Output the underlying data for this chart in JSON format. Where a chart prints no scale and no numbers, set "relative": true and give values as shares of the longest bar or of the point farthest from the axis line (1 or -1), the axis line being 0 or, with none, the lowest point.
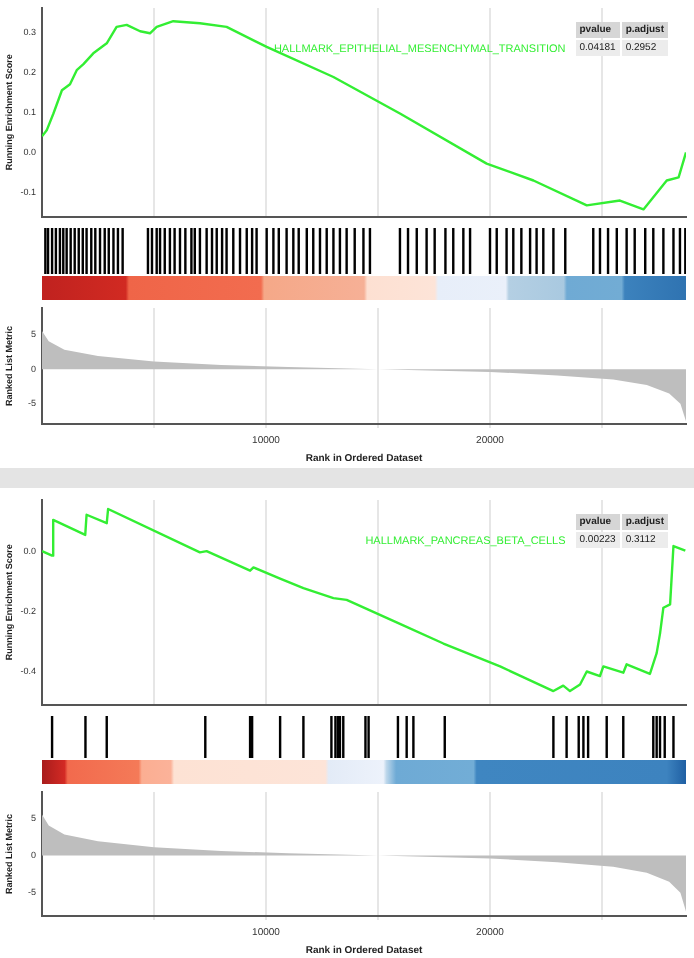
{
  "chart_data": [
    {
      "type": "line",
      "ylabel": "Running Enrichment Score",
      "xlim": [
        0,
        28750
      ],
      "xticks": [
        {
          "value": 5000,
          "label": null
        },
        {
          "value": 10000,
          "label": null
        },
        {
          "value": 15000,
          "label": null
        },
        {
          "value": 20000,
          "label": null
        },
        {
          "value": 25000,
          "label": null
        }
      ],
      "ylim": [
        -0.16,
        0.36
      ],
      "yticks": [
        -0.1,
        {
          "value": 0,
          "label": "0.0"
        },
        0.1,
        0.2,
        0.3
      ],
      "grid": "x",
      "tick_labels": "y",
      "series": [
        {
          "name": "HALLMARK_EPITHELIAL_MESENCHYMAL_TRANSITION",
          "color": "#33ee33",
          "x": [
            0,
            210,
            510,
            890,
            1250,
            1550,
            1850,
            2290,
            2890,
            3330,
            3780,
            4380,
            4820,
            5120,
            5860,
            7050,
            8240,
            10030,
            13010,
            15980,
            19850,
            21940,
            24320,
            25800,
            26850,
            27890,
            28420,
            28750
          ],
          "values": [
            0.04,
            0.055,
            0.097,
            0.155,
            0.17,
            0.205,
            0.22,
            0.247,
            0.272,
            0.313,
            0.318,
            0.302,
            0.297,
            0.313,
            0.327,
            0.322,
            0.313,
            0.263,
            0.188,
            0.097,
            -0.028,
            -0.07,
            -0.132,
            -0.12,
            -0.142,
            -0.07,
            -0.062,
            0.0
          ]
        }
      ],
      "annotations": [
        "pvalue",
        "p.adjust",
        "0.04181",
        "0.2952"
      ]
    },
    {
      "type": "bar",
      "relative": true,
      "xlim": [
        0,
        28750
      ],
      "tick_labels": false,
      "series": [
        {
          "color": "#000000",
          "x": [
            150,
            270,
            450,
            620,
            800,
            950,
            1100,
            1280,
            1460,
            1640,
            1820,
            1990,
            2200,
            2380,
            2590,
            2800,
            2980,
            3190,
            3390,
            3600,
            4730,
            4910,
            5120,
            5270,
            5480,
            5710,
            5920,
            6160,
            6400,
            6670,
            6820,
            7050,
            7350,
            7590,
            7800,
            8040,
            8240,
            8540,
            8840,
            9140,
            9380,
            9580,
            10030,
            10330,
            10570,
            10920,
            11220,
            11460,
            11820,
            12110,
            12410,
            12710,
            13010,
            13300,
            13600,
            13960,
            14350,
            14640,
            15980,
            16340,
            16730,
            17170,
            17530,
            18010,
            18360,
            18810,
            19110,
            20000,
            20300,
            20740,
            21040,
            21400,
            21790,
            22080,
            22380,
            22830,
            23360,
            24610,
            24910,
            25270,
            25660,
            26100,
            26460,
            26930,
            27290,
            27740,
            28190,
            28480,
            28720
          ],
          "values": [
            1,
            1,
            1,
            1,
            1,
            1,
            1,
            1,
            1,
            1,
            1,
            1,
            1,
            1,
            1,
            1,
            1,
            1,
            1,
            1,
            1,
            1,
            1,
            1,
            1,
            1,
            1,
            1,
            1,
            1,
            1,
            1,
            1,
            1,
            1,
            1,
            1,
            1,
            1,
            1,
            1,
            1,
            1,
            1,
            1,
            1,
            1,
            1,
            1,
            1,
            1,
            1,
            1,
            1,
            1,
            1,
            1,
            1,
            1,
            1,
            1,
            1,
            1,
            1,
            1,
            1,
            1,
            1,
            1,
            1,
            1,
            1,
            1,
            1,
            1,
            1,
            1,
            1,
            1,
            1,
            1,
            1,
            1,
            1,
            1,
            1,
            1,
            1,
            1
          ]
        }
      ]
    },
    {
      "type": "area",
      "ylabel": "Ranked List Metric",
      "xlabel": "Rank in Ordered Dataset",
      "xlim": [
        0,
        28750
      ],
      "xticks": [
        {
          "value": 5000,
          "label": null
        },
        {
          "value": 10000,
          "label": "10000"
        },
        {
          "value": 15000,
          "label": null
        },
        {
          "value": 20000,
          "label": "20000"
        },
        {
          "value": 25000,
          "label": null
        }
      ],
      "ylim": [
        -7.9,
        8.8
      ],
      "yticks": [
        -5,
        0,
        5
      ],
      "grid": "x",
      "series": [
        {
          "color": "#bebebe",
          "x": [
            0,
            300,
            1000,
            2500,
            5000,
            8000,
            11000,
            15000,
            20000,
            23000,
            25500,
            27000,
            28000,
            28500,
            28750
          ],
          "values": [
            5.5,
            4,
            2.8,
            1.9,
            1.1,
            0.6,
            0.3,
            0,
            -0.4,
            -0.9,
            -1.5,
            -2.3,
            -3.5,
            -5,
            -7.5
          ]
        }
      ]
    },
    {
      "type": "line",
      "ylabel": "Running Enrichment Score",
      "xlim": [
        0,
        28750
      ],
      "xticks": [
        {
          "value": 5000,
          "label": null
        },
        {
          "value": 10000,
          "label": null
        },
        {
          "value": 15000,
          "label": null
        },
        {
          "value": 20000,
          "label": null
        },
        {
          "value": 25000,
          "label": null
        }
      ],
      "ylim": [
        -0.51,
        0.17
      ],
      "yticks": [
        {
          "value": 0,
          "label": "0.0"
        },
        -0.2,
        -0.4
      ],
      "grid": "x",
      "tick_labels": "y",
      "series": [
        {
          "name": "HALLMARK_PANCREAS_BETA_CELLS",
          "color": "#33ee33",
          "x": [
            0,
            450,
            500,
            1930,
            1990,
            2890,
            2950,
            7050,
            7350,
            9290,
            9440,
            10630,
            11670,
            13010,
            13600,
            15980,
            17920,
            20450,
            22830,
            23270,
            23570,
            24020,
            24320,
            24910,
            25060,
            25950,
            26100,
            27140,
            27440,
            27590,
            27740,
            28040,
            28190,
            28720
          ],
          "values": [
            0,
            -0.015,
            0.104,
            0.054,
            0.121,
            0.093,
            0.14,
            -0.004,
            0,
            -0.065,
            -0.054,
            -0.091,
            -0.123,
            -0.156,
            -0.162,
            -0.242,
            -0.307,
            -0.383,
            -0.465,
            -0.447,
            -0.465,
            -0.443,
            -0.4,
            -0.415,
            -0.383,
            -0.404,
            -0.376,
            -0.408,
            -0.339,
            -0.274,
            -0.188,
            -0.177,
            0.017,
            0.002
          ]
        }
      ],
      "annotations": [
        "pvalue",
        "p.adjust",
        "0.00223",
        "0.3112"
      ]
    },
    {
      "type": "bar",
      "relative": true,
      "xlim": [
        0,
        28750
      ],
      "tick_labels": false,
      "series": [
        {
          "color": "#000000",
          "x": [
            450,
            1940,
            2890,
            7290,
            9290,
            9380,
            10630,
            11670,
            12920,
            13100,
            13210,
            13300,
            13450,
            14440,
            14580,
            15890,
            16280,
            16580,
            17980,
            22830,
            23420,
            23960,
            24170,
            24380,
            25210,
            25950,
            27290,
            27440,
            27590,
            27800,
            28190
          ],
          "values": [
            1,
            1,
            1,
            1,
            1,
            1,
            1,
            1,
            1,
            1,
            1,
            1,
            1,
            1,
            1,
            1,
            1,
            1,
            1,
            1,
            1,
            1,
            1,
            1,
            1,
            1,
            1,
            1,
            1,
            1,
            1
          ]
        }
      ]
    },
    {
      "type": "area",
      "ylabel": "Ranked List Metric",
      "xlabel": "Rank in Ordered Dataset",
      "xlim": [
        0,
        28750
      ],
      "xticks": [
        {
          "value": 5000,
          "label": null
        },
        {
          "value": 10000,
          "label": "10000"
        },
        {
          "value": 15000,
          "label": null
        },
        {
          "value": 20000,
          "label": "20000"
        },
        {
          "value": 25000,
          "label": null
        }
      ],
      "ylim": [
        -8.1,
        8.5
      ],
      "yticks": [
        -5,
        0,
        5
      ],
      "grid": "x",
      "series": [
        {
          "color": "#bebebe",
          "x": [
            0,
            300,
            1000,
            2500,
            5000,
            8000,
            11000,
            15000,
            20000,
            23000,
            25500,
            27000,
            28000,
            28500,
            28750
          ],
          "values": [
            5.5,
            4,
            2.8,
            1.9,
            1.1,
            0.6,
            0.3,
            0,
            -0.4,
            -0.9,
            -1.5,
            -2.3,
            -3.5,
            -5,
            -7.5
          ]
        }
      ]
    }
  ]
}
